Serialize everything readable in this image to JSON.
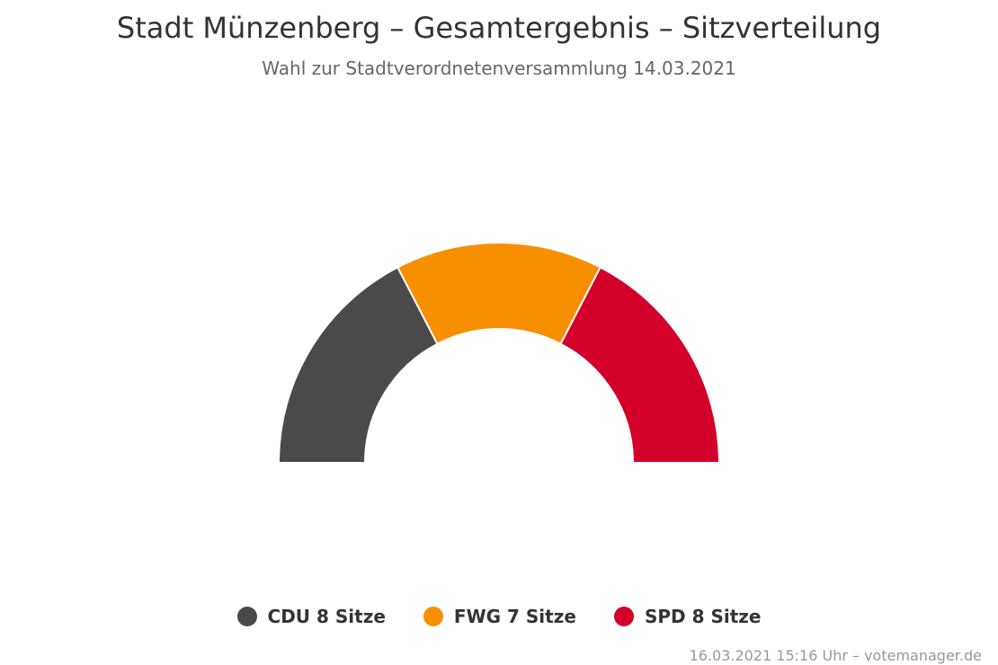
{
  "title": "Stadt Münzenberg – Gesamtergebnis – Sitzverteilung",
  "subtitle": "Wahl zur Stadtverordnetenversammlung 14.03.2021",
  "credits": "16.03.2021 15:16 Uhr – votemanager.de",
  "chart_data": {
    "type": "pie",
    "variant": "semicircle-donut",
    "title": "Stadt Münzenberg – Gesamtergebnis – Sitzverteilung",
    "subtitle": "Wahl zur Stadtverordnetenversammlung 14.03.2021",
    "categories": [
      "CDU",
      "FWG",
      "SPD"
    ],
    "values": [
      8,
      7,
      8
    ],
    "unit": "Sitze",
    "colors": [
      "#4a4a4a",
      "#f78f00",
      "#d2002a"
    ],
    "legend_position": "bottom-center"
  },
  "legend": [
    {
      "party": "CDU",
      "label": "CDU 8 Sitze",
      "color": "#4a4a4a"
    },
    {
      "party": "FWG",
      "label": "FWG 7 Sitze",
      "color": "#f78f00"
    },
    {
      "party": "SPD",
      "label": "SPD 8 Sitze",
      "color": "#d2002a"
    }
  ]
}
